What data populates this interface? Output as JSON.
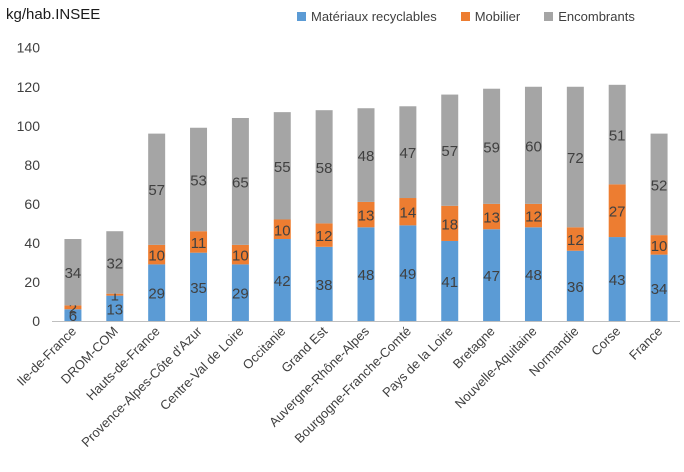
{
  "chart_data": {
    "type": "bar",
    "stacked": true,
    "unit_label": "kg/hab.INSEE",
    "ylim": [
      0,
      140
    ],
    "ytick_step": 20,
    "grid": false,
    "legend_position": "top-right",
    "categories": [
      "Ile-de-France",
      "DROM-COM",
      "Hauts-de-France",
      "Provence-Alpes-Côte d'Azur",
      "Centre-Val de Loire",
      "Occitanie",
      "Grand Est",
      "Auvergne-Rhône-Alpes",
      "Bourgogne-Franche-Comté",
      "Pays de la Loire",
      "Bretagne",
      "Nouvelle-Aquitaine",
      "Normandie",
      "Corse",
      "France"
    ],
    "series": [
      {
        "name": "Matériaux recyclables",
        "color": "#5b9bd5",
        "values": [
          6,
          13,
          29,
          35,
          29,
          42,
          38,
          48,
          49,
          41,
          47,
          48,
          36,
          43,
          34
        ]
      },
      {
        "name": "Mobilier",
        "color": "#ed7d31",
        "values": [
          2,
          1,
          10,
          11,
          10,
          10,
          12,
          13,
          14,
          18,
          13,
          12,
          12,
          27,
          10
        ]
      },
      {
        "name": "Encombrants",
        "color": "#a5a5a5",
        "values": [
          34,
          32,
          57,
          53,
          65,
          55,
          58,
          48,
          47,
          57,
          59,
          60,
          72,
          51,
          52
        ]
      }
    ]
  }
}
